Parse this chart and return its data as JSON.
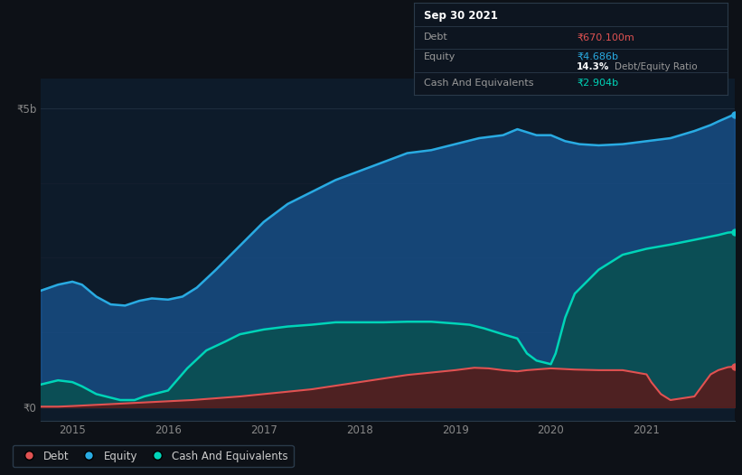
{
  "bg_color": "#0d1117",
  "plot_bg_color": "#0d1b2a",
  "grid_color": "#1e2d3d",
  "title_box": {
    "date": "Sep 30 2021",
    "debt_label": "Debt",
    "debt_value": "₹670.100m",
    "debt_color": "#e05252",
    "equity_label": "Equity",
    "equity_value": "₹4.686b",
    "equity_color": "#29abe2",
    "ratio_text": "14.3% Debt/Equity Ratio",
    "ratio_bold": "14.3%",
    "cash_label": "Cash And Equivalents",
    "cash_value": "₹2.904b",
    "cash_color": "#00d4b8"
  },
  "ylabel_5b": "₹5b",
  "ylabel_0": "₹0",
  "xlim": [
    2014.67,
    2021.92
  ],
  "ylim": [
    -220000000.0,
    5500000000.0
  ],
  "legend_items": [
    {
      "label": "Debt",
      "color": "#e05252"
    },
    {
      "label": "Equity",
      "color": "#29abe2"
    },
    {
      "label": "Cash And Equivalents",
      "color": "#00d4b8"
    }
  ],
  "equity_x": [
    2014.67,
    2014.85,
    2015.0,
    2015.1,
    2015.25,
    2015.4,
    2015.55,
    2015.7,
    2015.83,
    2016.0,
    2016.15,
    2016.3,
    2016.5,
    2016.75,
    2017.0,
    2017.25,
    2017.5,
    2017.75,
    2018.0,
    2018.25,
    2018.5,
    2018.75,
    2019.0,
    2019.25,
    2019.5,
    2019.65,
    2019.75,
    2019.85,
    2020.0,
    2020.15,
    2020.3,
    2020.5,
    2020.75,
    2021.0,
    2021.25,
    2021.5,
    2021.67,
    2021.75,
    2021.85,
    2021.92
  ],
  "equity_y": [
    1950000000.0,
    2050000000.0,
    2100000000.0,
    2050000000.0,
    1850000000.0,
    1720000000.0,
    1700000000.0,
    1780000000.0,
    1820000000.0,
    1800000000.0,
    1850000000.0,
    2000000000.0,
    2300000000.0,
    2700000000.0,
    3100000000.0,
    3400000000.0,
    3600000000.0,
    3800000000.0,
    3950000000.0,
    4100000000.0,
    4250000000.0,
    4300000000.0,
    4400000000.0,
    4500000000.0,
    4550000000.0,
    4650000000.0,
    4600000000.0,
    4550000000.0,
    4550000000.0,
    4450000000.0,
    4400000000.0,
    4380000000.0,
    4400000000.0,
    4450000000.0,
    4500000000.0,
    4620000000.0,
    4720000000.0,
    4780000000.0,
    4850000000.0,
    4900000000.0
  ],
  "cash_x": [
    2014.67,
    2014.85,
    2015.0,
    2015.1,
    2015.25,
    2015.5,
    2015.65,
    2015.75,
    2016.0,
    2016.2,
    2016.4,
    2016.6,
    2016.75,
    2017.0,
    2017.25,
    2017.5,
    2017.75,
    2018.0,
    2018.25,
    2018.5,
    2018.75,
    2019.0,
    2019.15,
    2019.3,
    2019.5,
    2019.65,
    2019.75,
    2019.85,
    2020.0,
    2020.05,
    2020.15,
    2020.25,
    2020.5,
    2020.75,
    2021.0,
    2021.25,
    2021.5,
    2021.75,
    2021.85,
    2021.92
  ],
  "cash_y": [
    380000000.0,
    450000000.0,
    420000000.0,
    350000000.0,
    220000000.0,
    120000000.0,
    120000000.0,
    180000000.0,
    280000000.0,
    650000000.0,
    950000000.0,
    1100000000.0,
    1220000000.0,
    1300000000.0,
    1350000000.0,
    1380000000.0,
    1420000000.0,
    1420000000.0,
    1420000000.0,
    1430000000.0,
    1430000000.0,
    1400000000.0,
    1380000000.0,
    1320000000.0,
    1220000000.0,
    1150000000.0,
    900000000.0,
    780000000.0,
    720000000.0,
    900000000.0,
    1500000000.0,
    1900000000.0,
    2300000000.0,
    2550000000.0,
    2650000000.0,
    2720000000.0,
    2800000000.0,
    2880000000.0,
    2920000000.0,
    2930000000.0
  ],
  "debt_x": [
    2014.67,
    2014.85,
    2015.0,
    2015.25,
    2015.5,
    2015.75,
    2016.0,
    2016.25,
    2016.5,
    2016.75,
    2017.0,
    2017.25,
    2017.5,
    2017.75,
    2018.0,
    2018.25,
    2018.5,
    2018.75,
    2019.0,
    2019.1,
    2019.2,
    2019.35,
    2019.5,
    2019.65,
    2019.75,
    2020.0,
    2020.25,
    2020.5,
    2020.75,
    2021.0,
    2021.05,
    2021.15,
    2021.25,
    2021.5,
    2021.67,
    2021.75,
    2021.85,
    2021.92
  ],
  "debt_y": [
    10000000.0,
    10000000.0,
    20000000.0,
    40000000.0,
    60000000.0,
    80000000.0,
    100000000.0,
    120000000.0,
    150000000.0,
    180000000.0,
    220000000.0,
    260000000.0,
    300000000.0,
    360000000.0,
    420000000.0,
    480000000.0,
    540000000.0,
    580000000.0,
    620000000.0,
    640000000.0,
    660000000.0,
    650000000.0,
    620000000.0,
    600000000.0,
    620000000.0,
    650000000.0,
    630000000.0,
    620000000.0,
    620000000.0,
    550000000.0,
    420000000.0,
    220000000.0,
    120000000.0,
    180000000.0,
    550000000.0,
    620000000.0,
    670000000.0,
    680000000.0
  ]
}
